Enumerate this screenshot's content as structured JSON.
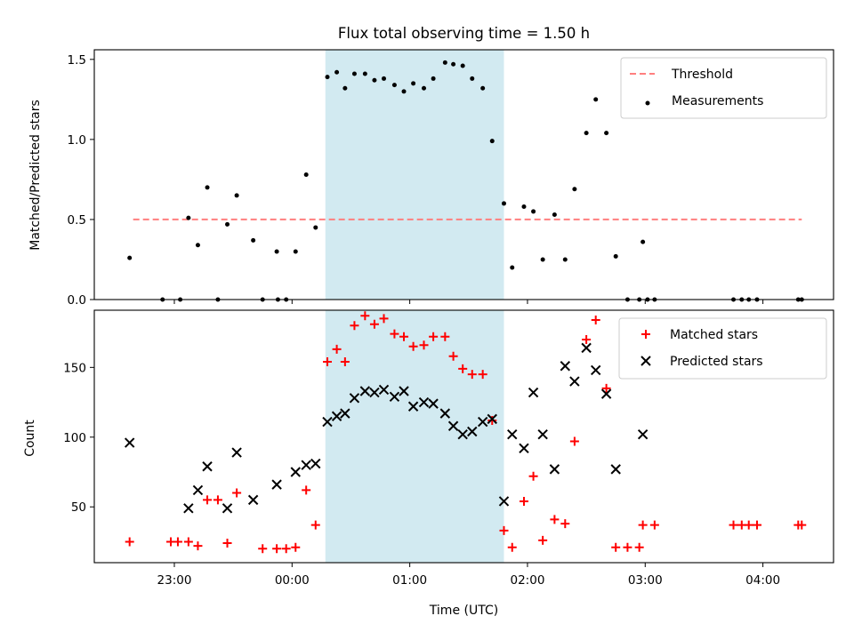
{
  "chart_data": [
    {
      "type": "scatter",
      "title": "Flux total observing time = 1.50 h",
      "ylabel": "Matched/Predicted stars",
      "xlabel": "",
      "x_unit": "hours since 00:00 UTC",
      "ylim": [
        0,
        1.56
      ],
      "yticks": [
        0.0,
        0.5,
        1.0,
        1.5
      ],
      "ytick_labels": [
        "0.0",
        "0.5",
        "1.0",
        "1.5"
      ],
      "xlim": [
        -1.68,
        4.6
      ],
      "xticks": [
        -1,
        0,
        1,
        2,
        3,
        4
      ],
      "span": {
        "x0": 0.283,
        "x1": 1.8,
        "color": "#add8e6"
      },
      "threshold": {
        "value": 0.5,
        "x0": -1.35,
        "x1": 4.33,
        "color": "#ff7f7f",
        "label": "Threshold"
      },
      "legend": {
        "placement": "upper right",
        "entries": [
          "Threshold",
          "Measurements"
        ]
      },
      "series": [
        {
          "name": "Measurements",
          "color": "#000000",
          "points": [
            [
              -1.38,
              0.26
            ],
            [
              -1.1,
              0.0
            ],
            [
              -0.95,
              0.0
            ],
            [
              -0.88,
              0.51
            ],
            [
              -0.8,
              0.34
            ],
            [
              -0.72,
              0.7
            ],
            [
              -0.63,
              0.0
            ],
            [
              -0.55,
              0.47
            ],
            [
              -0.47,
              0.65
            ],
            [
              -0.33,
              0.37
            ],
            [
              -0.25,
              0.0
            ],
            [
              -0.13,
              0.3
            ],
            [
              -0.12,
              0.0
            ],
            [
              -0.05,
              0.0
            ],
            [
              0.03,
              0.3
            ],
            [
              0.12,
              0.78
            ],
            [
              0.2,
              0.45
            ],
            [
              0.3,
              1.39
            ],
            [
              0.38,
              1.42
            ],
            [
              0.45,
              1.32
            ],
            [
              0.53,
              1.41
            ],
            [
              0.62,
              1.41
            ],
            [
              0.7,
              1.37
            ],
            [
              0.78,
              1.38
            ],
            [
              0.87,
              1.34
            ],
            [
              0.95,
              1.3
            ],
            [
              1.03,
              1.35
            ],
            [
              1.12,
              1.32
            ],
            [
              1.2,
              1.38
            ],
            [
              1.3,
              1.48
            ],
            [
              1.37,
              1.47
            ],
            [
              1.45,
              1.46
            ],
            [
              1.53,
              1.38
            ],
            [
              1.62,
              1.32
            ],
            [
              1.7,
              0.99
            ],
            [
              1.8,
              0.6
            ],
            [
              1.87,
              0.2
            ],
            [
              1.97,
              0.58
            ],
            [
              2.05,
              0.55
            ],
            [
              2.13,
              0.25
            ],
            [
              2.23,
              0.53
            ],
            [
              2.32,
              0.25
            ],
            [
              2.4,
              0.69
            ],
            [
              2.5,
              1.04
            ],
            [
              2.58,
              1.25
            ],
            [
              2.67,
              1.04
            ],
            [
              2.75,
              0.27
            ],
            [
              2.85,
              0.0
            ],
            [
              2.95,
              0.0
            ],
            [
              2.98,
              0.36
            ],
            [
              3.02,
              0.0
            ],
            [
              3.08,
              0.0
            ],
            [
              3.75,
              0.0
            ],
            [
              3.82,
              0.0
            ],
            [
              3.88,
              0.0
            ],
            [
              3.95,
              0.0
            ],
            [
              4.3,
              0.0
            ],
            [
              4.33,
              0.0
            ]
          ]
        }
      ]
    },
    {
      "type": "scatter",
      "title": "",
      "ylabel": "Count",
      "xlabel": "Time (UTC)",
      "x_unit": "hours since 00:00 UTC",
      "ylim": [
        10,
        191
      ],
      "yticks": [
        50,
        100,
        150
      ],
      "ytick_labels": [
        "50",
        "100",
        "150"
      ],
      "xlim": [
        -1.68,
        4.6
      ],
      "xticks": [
        -1,
        0,
        1,
        2,
        3,
        4
      ],
      "xtick_labels": [
        "23:00",
        "00:00",
        "01:00",
        "02:00",
        "03:00",
        "04:00"
      ],
      "span": {
        "x0": 0.283,
        "x1": 1.8,
        "color": "#add8e6"
      },
      "legend": {
        "placement": "upper right",
        "entries": [
          "Matched stars",
          "Predicted stars"
        ]
      },
      "series": [
        {
          "name": "Matched stars",
          "marker": "plus",
          "color": "#ff0000",
          "points": [
            [
              -1.38,
              25
            ],
            [
              -1.03,
              25
            ],
            [
              -0.97,
              25
            ],
            [
              -0.88,
              25
            ],
            [
              -0.8,
              22
            ],
            [
              -0.72,
              55
            ],
            [
              -0.63,
              55
            ],
            [
              -0.55,
              24
            ],
            [
              -0.47,
              60
            ],
            [
              -0.25,
              20
            ],
            [
              -0.13,
              20
            ],
            [
              -0.05,
              20
            ],
            [
              0.03,
              21
            ],
            [
              0.12,
              62
            ],
            [
              0.2,
              37
            ],
            [
              0.3,
              154
            ],
            [
              0.38,
              163
            ],
            [
              0.45,
              154
            ],
            [
              0.53,
              180
            ],
            [
              0.62,
              187
            ],
            [
              0.7,
              181
            ],
            [
              0.78,
              185
            ],
            [
              0.87,
              174
            ],
            [
              0.95,
              172
            ],
            [
              1.03,
              165
            ],
            [
              1.12,
              166
            ],
            [
              1.2,
              172
            ],
            [
              1.3,
              172
            ],
            [
              1.37,
              158
            ],
            [
              1.45,
              149
            ],
            [
              1.53,
              145
            ],
            [
              1.62,
              145
            ],
            [
              1.7,
              112
            ],
            [
              1.8,
              33
            ],
            [
              1.87,
              21
            ],
            [
              1.97,
              54
            ],
            [
              2.05,
              72
            ],
            [
              2.13,
              26
            ],
            [
              2.23,
              41
            ],
            [
              2.32,
              38
            ],
            [
              2.4,
              97
            ],
            [
              2.5,
              170
            ],
            [
              2.58,
              184
            ],
            [
              2.67,
              135
            ],
            [
              2.75,
              21
            ],
            [
              2.85,
              21
            ],
            [
              2.95,
              21
            ],
            [
              2.98,
              37
            ],
            [
              3.08,
              37
            ],
            [
              3.75,
              37
            ],
            [
              3.82,
              37
            ],
            [
              3.88,
              37
            ],
            [
              3.95,
              37
            ],
            [
              4.3,
              37
            ],
            [
              4.33,
              37
            ]
          ]
        },
        {
          "name": "Predicted stars",
          "marker": "x",
          "color": "#000000",
          "points": [
            [
              -1.38,
              96
            ],
            [
              -0.88,
              49
            ],
            [
              -0.8,
              62
            ],
            [
              -0.72,
              79
            ],
            [
              -0.55,
              49
            ],
            [
              -0.47,
              89
            ],
            [
              -0.33,
              55
            ],
            [
              -0.13,
              66
            ],
            [
              0.03,
              75
            ],
            [
              0.12,
              80
            ],
            [
              0.2,
              81
            ],
            [
              0.3,
              111
            ],
            [
              0.38,
              115
            ],
            [
              0.45,
              117
            ],
            [
              0.53,
              128
            ],
            [
              0.62,
              133
            ],
            [
              0.7,
              132
            ],
            [
              0.78,
              134
            ],
            [
              0.87,
              129
            ],
            [
              0.95,
              133
            ],
            [
              1.03,
              122
            ],
            [
              1.12,
              125
            ],
            [
              1.2,
              124
            ],
            [
              1.3,
              117
            ],
            [
              1.37,
              108
            ],
            [
              1.45,
              102
            ],
            [
              1.53,
              104
            ],
            [
              1.62,
              111
            ],
            [
              1.7,
              113
            ],
            [
              1.8,
              54
            ],
            [
              1.87,
              102
            ],
            [
              1.97,
              92
            ],
            [
              2.05,
              132
            ],
            [
              2.13,
              102
            ],
            [
              2.23,
              77
            ],
            [
              2.32,
              151
            ],
            [
              2.4,
              140
            ],
            [
              2.5,
              164
            ],
            [
              2.58,
              148
            ],
            [
              2.67,
              131
            ],
            [
              2.75,
              77
            ],
            [
              2.98,
              102
            ]
          ]
        }
      ]
    }
  ]
}
